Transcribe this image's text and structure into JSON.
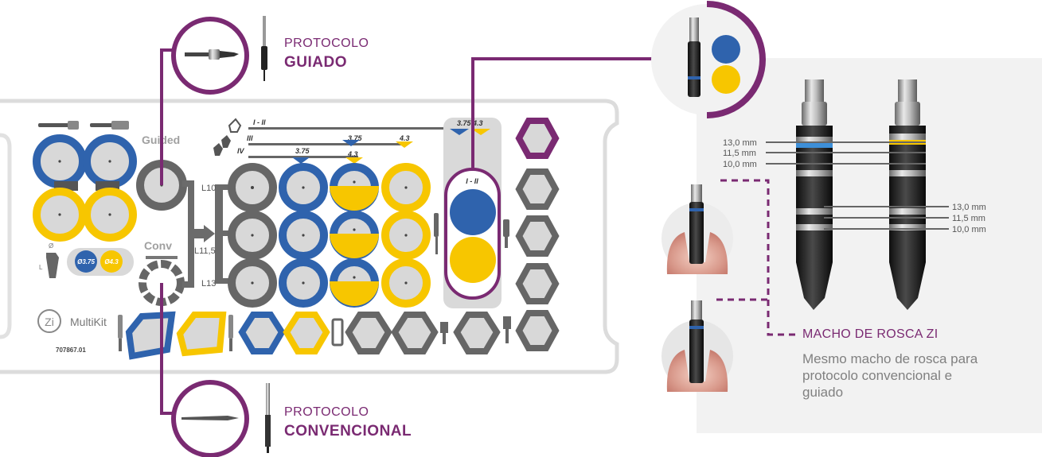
{
  "protocols": {
    "guided": {
      "line1": "PROTOCOLO",
      "line2": "GUIADO"
    },
    "conventional": {
      "line1": "PROTOCOLO",
      "line2": "CONVENCIONAL"
    }
  },
  "kit": {
    "guided_label": "Guided",
    "conv_label": "Conv",
    "brand": "MultiKit",
    "logo": "Zi",
    "code": "707867.01",
    "phi_symbol": "Ø",
    "len_symbol": "L",
    "diam_small": "Ø3.75",
    "diam_large": "Ø4.3",
    "rows": [
      "L10",
      "L11,5",
      "L13"
    ],
    "bone_labels": [
      "I - II",
      "III",
      "IV"
    ],
    "sizes": {
      "s375": "3.75",
      "s43": "4.3",
      "top": "3.75  4.3"
    },
    "tube_label": "I - II"
  },
  "tap": {
    "title": "MACHO DE ROSCA ZI",
    "description": "Mesmo macho de rosca para protocolo convencional e guiado",
    "depths_left": [
      "13,0 mm",
      "11,5 mm",
      "10,0 mm"
    ],
    "depths_right": [
      "13,0 mm",
      "11,5 mm",
      "10,0 mm"
    ]
  },
  "colors": {
    "blue": "#2f63ad",
    "yellow": "#f7c600",
    "purple": "#7a2a72",
    "gray": "#666666",
    "light_gray": "#d9d9d9",
    "panel": "#f2f2f2"
  }
}
